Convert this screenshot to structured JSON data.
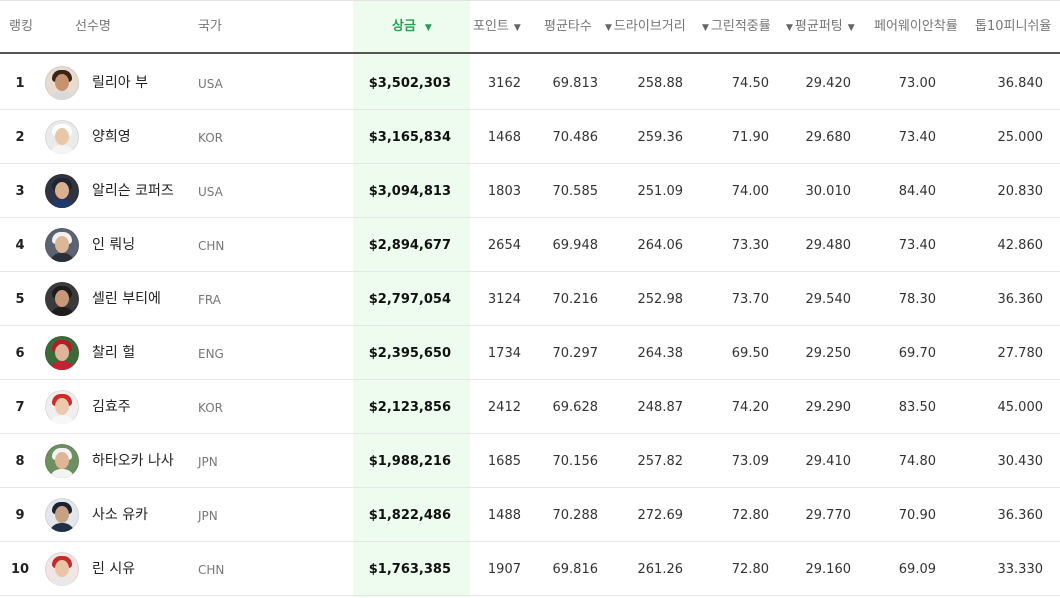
{
  "columns": {
    "rank": "랭킹",
    "player": "선수명",
    "country": "국가",
    "prize": "상금",
    "points": "포인트",
    "avg_score": "평균타수",
    "drive_distance": "드라이브거리",
    "green_in_reg": "그린적중률",
    "avg_putting": "평균퍼팅",
    "fairway_accuracy": "페어웨이안착률",
    "top10_finish": "톱10피니쉬율"
  },
  "sort_arrow": "▼",
  "rows": [
    {
      "rank": "1",
      "name": "릴리아 부",
      "country": "USA",
      "prize": "$3,502,303",
      "points": "3162",
      "avg": "69.813",
      "drive": "258.88",
      "gir": "74.50",
      "putt": "29.420",
      "fair": "73.00",
      "top10": "36.840",
      "avatar": {
        "skin": "#c9926f",
        "hair": "#3a2418",
        "bg": "#e8dcd0",
        "shirt": "#d9d9d9"
      }
    },
    {
      "rank": "2",
      "name": "양희영",
      "country": "KOR",
      "prize": "$3,165,834",
      "points": "1468",
      "avg": "70.486",
      "drive": "259.36",
      "gir": "71.90",
      "putt": "29.680",
      "fair": "73.40",
      "top10": "25.000",
      "avatar": {
        "skin": "#e8c6a8",
        "hair": "#ffffff",
        "bg": "#eaeaea",
        "shirt": "#f4f4f4"
      }
    },
    {
      "rank": "3",
      "name": "알리슨 코퍼즈",
      "country": "USA",
      "prize": "$3,094,813",
      "points": "1803",
      "avg": "70.585",
      "drive": "251.09",
      "gir": "74.00",
      "putt": "30.010",
      "fair": "84.40",
      "top10": "20.830",
      "avatar": {
        "skin": "#d9b090",
        "hair": "#20242c",
        "bg": "#2f3440",
        "shirt": "#1f3a6a"
      }
    },
    {
      "rank": "4",
      "name": "인 뤄닝",
      "country": "CHN",
      "prize": "$2,894,677",
      "points": "2654",
      "avg": "69.948",
      "drive": "264.06",
      "gir": "73.30",
      "putt": "29.480",
      "fair": "73.40",
      "top10": "42.860",
      "avatar": {
        "skin": "#dcb696",
        "hair": "#f0f0f0",
        "bg": "#5b6270",
        "shirt": "#2b2f38"
      }
    },
    {
      "rank": "5",
      "name": "셀린 부티에",
      "country": "FRA",
      "prize": "$2,797,054",
      "points": "3124",
      "avg": "70.216",
      "drive": "252.98",
      "gir": "73.70",
      "putt": "29.540",
      "fair": "78.30",
      "top10": "36.360",
      "avatar": {
        "skin": "#c99878",
        "hair": "#1d1d1d",
        "bg": "#3b3b3b",
        "shirt": "#1d1d1d"
      }
    },
    {
      "rank": "6",
      "name": "찰리 헐",
      "country": "ENG",
      "prize": "$2,395,650",
      "points": "1734",
      "avg": "70.297",
      "drive": "264.38",
      "gir": "69.50",
      "putt": "29.250",
      "fair": "69.70",
      "top10": "27.780",
      "avatar": {
        "skin": "#e0b49a",
        "hair": "#b01e2a",
        "bg": "#3d6a3a",
        "shirt": "#c22333"
      }
    },
    {
      "rank": "7",
      "name": "김효주",
      "country": "KOR",
      "prize": "$2,123,856",
      "points": "2412",
      "avg": "69.628",
      "drive": "248.87",
      "gir": "74.20",
      "putt": "29.290",
      "fair": "83.50",
      "top10": "45.000",
      "avatar": {
        "skin": "#ecc9ad",
        "hair": "#d12a2a",
        "bg": "#efefef",
        "shirt": "#f7f7f7"
      }
    },
    {
      "rank": "8",
      "name": "하타오카 나사",
      "country": "JPN",
      "prize": "$1,988,216",
      "points": "1685",
      "avg": "70.156",
      "drive": "257.82",
      "gir": "73.09",
      "putt": "29.410",
      "fair": "74.80",
      "top10": "30.430",
      "avatar": {
        "skin": "#deb695",
        "hair": "#f2f2f2",
        "bg": "#6d8f62",
        "shirt": "#f3f3f3"
      }
    },
    {
      "rank": "9",
      "name": "사소 유카",
      "country": "JPN",
      "prize": "$1,822,486",
      "points": "1488",
      "avg": "70.288",
      "drive": "272.69",
      "gir": "72.80",
      "putt": "29.770",
      "fair": "70.90",
      "top10": "36.360",
      "avatar": {
        "skin": "#c6a184",
        "hair": "#1b2230",
        "bg": "#e3e6ea",
        "shirt": "#223046"
      }
    },
    {
      "rank": "10",
      "name": "린 시유",
      "country": "CHN",
      "prize": "$1,763,385",
      "points": "1907",
      "avg": "69.816",
      "drive": "261.26",
      "gir": "72.80",
      "putt": "29.160",
      "fair": "69.09",
      "top10": "33.330",
      "avatar": {
        "skin": "#e9c5a6",
        "hair": "#c62a2a",
        "bg": "#f1e5e5",
        "shirt": "#e8e8e8"
      }
    }
  ]
}
